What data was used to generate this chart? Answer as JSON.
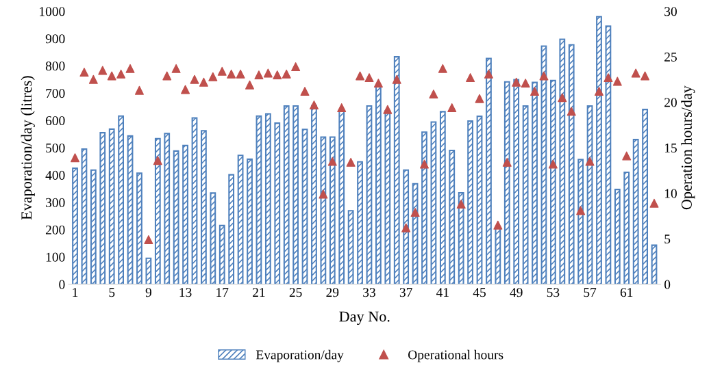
{
  "chart_data": {
    "type": "bar",
    "xlabel": "Day No.",
    "ylabel": "Evaporation/day (litres)",
    "y2label": "Operation hours/day",
    "categories": [
      "1",
      null,
      null,
      null,
      "5",
      null,
      null,
      null,
      "9",
      null,
      null,
      null,
      "13",
      null,
      null,
      null,
      "17",
      null,
      null,
      null,
      "21",
      null,
      null,
      null,
      "25",
      null,
      null,
      null,
      "29",
      null,
      null,
      null,
      "33",
      null,
      null,
      null,
      "37",
      null,
      null,
      null,
      "41",
      null,
      null,
      null,
      "45",
      null,
      null,
      null,
      "49",
      null,
      null,
      null,
      "53",
      null,
      null,
      null,
      "57",
      null,
      null,
      null,
      "61",
      null,
      null,
      null
    ],
    "ylim": [
      0,
      1000
    ],
    "yticks": [
      0,
      100,
      200,
      300,
      400,
      500,
      600,
      700,
      800,
      900,
      1000
    ],
    "y2lim": [
      0,
      30
    ],
    "y2ticks": [
      0,
      5,
      10,
      15,
      20,
      25,
      30
    ],
    "grid": false,
    "legend": "bottom",
    "series": [
      {
        "name": "Evaporation/day",
        "color": "#4f81bd",
        "values": [
          425,
          495,
          418,
          555,
          568,
          616,
          543,
          407,
          95,
          533,
          552,
          488,
          508,
          609,
          562,
          334,
          215,
          401,
          472,
          458,
          616,
          624,
          590,
          653,
          653,
          567,
          655,
          539,
          539,
          634,
          269,
          448,
          653,
          725,
          635,
          833,
          418,
          368,
          557,
          594,
          632,
          490,
          335,
          598,
          615,
          827,
          205,
          741,
          749,
          653,
          739,
          872,
          746,
          897,
          877,
          457,
          653,
          980,
          945,
          347,
          410,
          530,
          640,
          143
        ]
      },
      {
        "name": "Operational hours",
        "type": "scatter",
        "axis": "y2",
        "marker": "triangle",
        "color": "#c0504d",
        "values": [
          13.9,
          23.3,
          22.5,
          23.5,
          22.9,
          23.1,
          23.7,
          21.3,
          4.9,
          13.6,
          22.9,
          23.7,
          21.4,
          22.5,
          22.2,
          22.8,
          23.4,
          23.1,
          23.1,
          21.9,
          23.0,
          23.2,
          23.0,
          23.1,
          23.9,
          21.2,
          19.7,
          9.9,
          13.5,
          19.4,
          13.4,
          22.9,
          22.7,
          22.1,
          19.2,
          22.5,
          6.2,
          7.9,
          13.2,
          20.9,
          23.7,
          19.4,
          8.8,
          22.7,
          20.4,
          23.1,
          6.5,
          13.4,
          22.2,
          22.1,
          21.2,
          22.9,
          13.2,
          20.5,
          19.0,
          8.1,
          13.5,
          21.2,
          22.7,
          22.3,
          14.1,
          23.2,
          22.9,
          8.9
        ]
      }
    ]
  }
}
